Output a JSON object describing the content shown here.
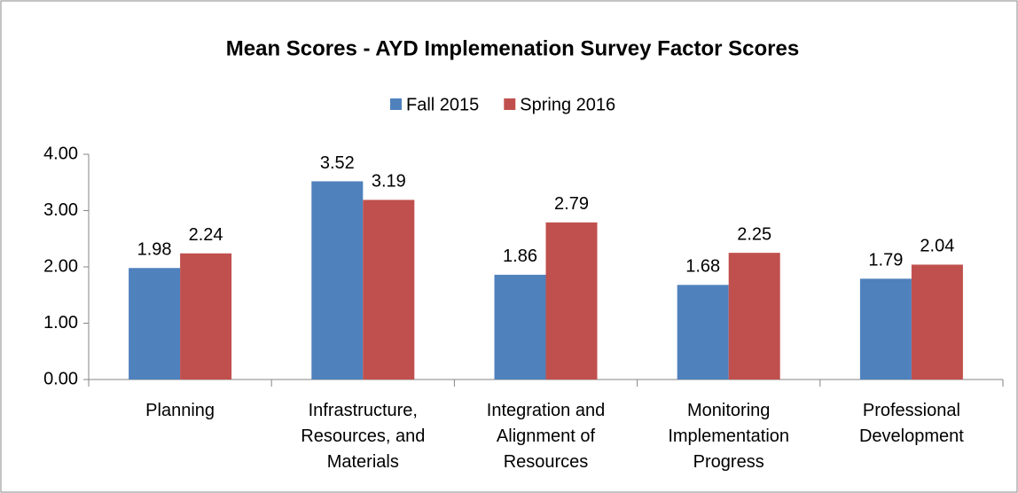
{
  "chart_data": {
    "type": "bar",
    "title": "Mean Scores - AYD Implemenation Survey Factor Scores",
    "categories": [
      "Planning",
      "Infrastructure,\nResources, and\nMaterials",
      "Integration and\nAlignment of\nResources",
      "Monitoring\nImplementation\nProgress",
      "Professional\nDevelopment"
    ],
    "series": [
      {
        "name": "Fall 2015",
        "color": "#4f81bd",
        "values": [
          1.98,
          3.52,
          1.86,
          1.68,
          1.79
        ]
      },
      {
        "name": "Spring 2016",
        "color": "#c0504d",
        "values": [
          2.24,
          3.19,
          2.79,
          2.25,
          2.04
        ]
      }
    ],
    "ylim": [
      0,
      4
    ],
    "yticks": [
      {
        "value": 0,
        "label": "0.00"
      },
      {
        "value": 1,
        "label": "1.00"
      },
      {
        "value": 2,
        "label": "2.00"
      },
      {
        "value": 3,
        "label": "3.00"
      },
      {
        "value": 4,
        "label": "4.00"
      }
    ],
    "grid": false,
    "legend": "top"
  }
}
